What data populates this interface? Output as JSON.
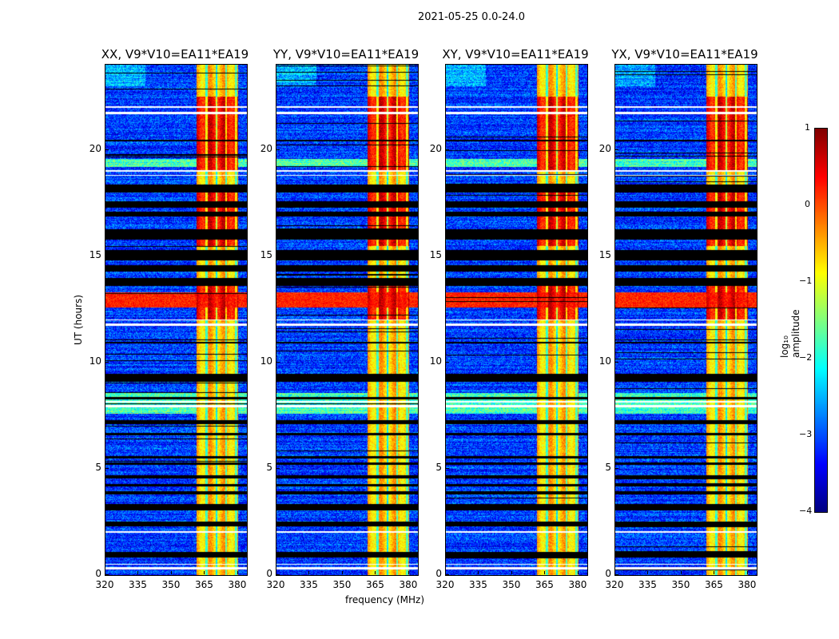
{
  "chart_data": {
    "type": "heatmap",
    "title": "2021-05-25 0.0-24.0",
    "panels": [
      {
        "title": "XX, V9*V10=EA11*EA19"
      },
      {
        "title": "YY, V9*V10=EA11*EA19"
      },
      {
        "title": "XY, V9*V10=EA11*EA19"
      },
      {
        "title": "YX, V9*V10=EA11*EA19"
      }
    ],
    "xlabel": "frequency (MHz)",
    "ylabel": "UT (hours)",
    "xlim": [
      320,
      384
    ],
    "ylim": [
      0,
      24
    ],
    "xticks": [
      "320",
      "335",
      "350",
      "365",
      "380"
    ],
    "xtick_values": [
      320,
      335,
      350,
      365,
      380
    ],
    "yticks": [
      "0",
      "5",
      "10",
      "15",
      "20"
    ],
    "ytick_values": [
      0,
      5,
      10,
      15,
      20
    ],
    "colorbar": {
      "label": "log₁₀ amplitude",
      "range": [
        -4,
        1
      ],
      "ticks": [
        "1",
        "0",
        "−1",
        "−2",
        "−3",
        "−4"
      ],
      "tick_values": [
        1,
        0,
        -1,
        -2,
        -3,
        -4
      ],
      "colormap": "jet"
    },
    "bright_band_mhz": [
      361,
      380
    ],
    "background_level": -3.1,
    "band_level": -0.6,
    "rfi_all_freq_hours": [
      12.6,
      13.3
    ],
    "flagged_hours": [
      [
        0.85,
        1.1
      ],
      [
        2.3,
        2.55
      ],
      [
        3.05,
        3.35
      ],
      [
        3.8,
        3.95
      ],
      [
        4.2,
        4.3
      ],
      [
        4.55,
        4.7
      ],
      [
        5.2,
        5.3
      ],
      [
        5.5,
        5.6
      ],
      [
        6.6,
        6.7
      ],
      [
        7.1,
        7.3
      ],
      [
        8.3,
        8.4
      ],
      [
        9.1,
        9.5
      ],
      [
        10.9,
        11.0
      ],
      [
        13.6,
        14.0
      ],
      [
        14.3,
        14.6
      ],
      [
        14.8,
        15.3
      ],
      [
        15.8,
        16.3
      ],
      [
        16.9,
        17.1
      ],
      [
        17.3,
        17.6
      ],
      [
        18.0,
        18.4
      ],
      [
        20.4,
        20.5
      ]
    ],
    "blank_hours": [
      [
        0.3,
        0.4
      ],
      [
        0.5,
        0.55
      ],
      [
        2.0,
        2.1
      ],
      [
        7.9,
        8.0
      ],
      [
        8.15,
        8.2
      ],
      [
        11.75,
        11.85
      ],
      [
        12.0,
        12.05
      ],
      [
        18.8,
        18.85
      ],
      [
        19.0,
        19.05
      ],
      [
        21.7,
        21.8
      ],
      [
        22.0,
        22.05
      ]
    ]
  }
}
